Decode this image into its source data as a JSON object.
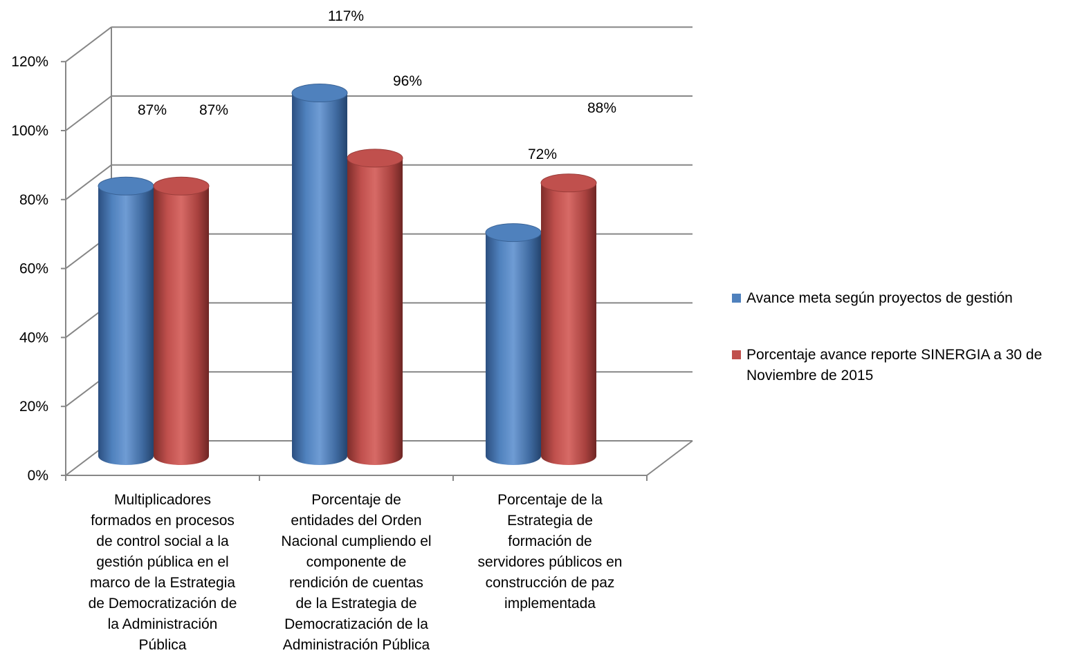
{
  "chart_data": {
    "type": "bar",
    "title": "",
    "xlabel": "",
    "ylabel": "",
    "ylim": [
      0,
      1.2
    ],
    "y_ticks": [
      "0%",
      "20%",
      "40%",
      "60%",
      "80%",
      "100%",
      "120%"
    ],
    "categories": [
      [
        "Multiplicadores",
        "formados en procesos",
        "de control social a la",
        "gestión pública en el",
        "marco de la Estrategia",
        "de Democratización de",
        "la Administración",
        "Pública"
      ],
      [
        "Porcentaje de",
        "entidades del Orden",
        "Nacional cumpliendo el",
        "componente de",
        "rendición de cuentas",
        "de la Estrategia de",
        "Democratización de la",
        "Administración Pública"
      ],
      [
        "Porcentaje de la",
        "Estrategia de",
        "formación de",
        "servidores públicos en",
        "construcción de paz",
        "implementada"
      ]
    ],
    "series": [
      {
        "name": "Avance meta según proyectos de gestión",
        "color": "#4F81BD",
        "values": [
          0.87,
          1.17,
          0.72
        ],
        "labels": [
          "87%",
          "117%",
          "72%"
        ]
      },
      {
        "name": [
          "Porcentaje avance reporte SINERGIA a 30 de",
          "Noviembre de 2015"
        ],
        "color": "#C0504D",
        "values": [
          0.87,
          0.96,
          0.88
        ],
        "labels": [
          "87%",
          "96%",
          "88%"
        ]
      }
    ],
    "grid": true,
    "legend": "right",
    "style": "3d-cylinder"
  }
}
